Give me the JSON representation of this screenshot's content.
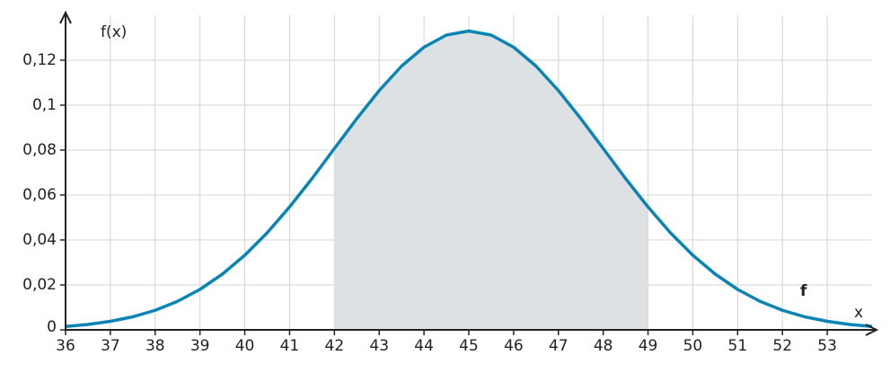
{
  "chart_data": {
    "type": "line",
    "x_label": "x",
    "y_label": "f(x)",
    "curve_label": "f",
    "x": [
      36,
      36.5,
      37,
      37.5,
      38,
      38.5,
      39,
      39.5,
      40,
      40.5,
      41,
      41.5,
      42,
      42.5,
      43,
      43.5,
      44,
      44.5,
      45,
      45.5,
      46,
      46.5,
      47,
      47.5,
      48,
      48.5,
      49,
      49.5,
      50,
      50.5,
      51,
      51.5,
      52,
      52.5,
      53,
      53.5,
      54
    ],
    "series": [
      {
        "name": "f",
        "color": "#0a84b4",
        "values": [
          0.0015,
          0.0024,
          0.0038,
          0.0058,
          0.0087,
          0.0127,
          0.018,
          0.0248,
          0.0332,
          0.0432,
          0.0547,
          0.0673,
          0.0807,
          0.094,
          0.1065,
          0.1174,
          0.1258,
          0.1312,
          0.133,
          0.1312,
          0.1258,
          0.1174,
          0.1065,
          0.094,
          0.0807,
          0.0673,
          0.0547,
          0.0432,
          0.0332,
          0.0248,
          0.018,
          0.0127,
          0.0087,
          0.0058,
          0.0038,
          0.0024,
          0.0015
        ]
      }
    ],
    "shaded_range": [
      42,
      49
    ],
    "shade_color": "#dde1e4",
    "xlim": [
      36,
      54
    ],
    "ylim": [
      0,
      0.14
    ],
    "xticks": [
      36,
      37,
      38,
      39,
      40,
      41,
      42,
      43,
      44,
      45,
      46,
      47,
      48,
      49,
      50,
      51,
      52,
      53
    ],
    "yticks": [
      0,
      {
        "value": 0.02,
        "label": "0,02"
      },
      {
        "value": 0.04,
        "label": "0,04"
      },
      {
        "value": 0.06,
        "label": "0,06"
      },
      {
        "value": 0.08,
        "label": "0,08"
      },
      {
        "value": 0.1,
        "label": "0,1"
      },
      {
        "value": 0.12,
        "label": "0,12"
      }
    ],
    "grid": true
  }
}
